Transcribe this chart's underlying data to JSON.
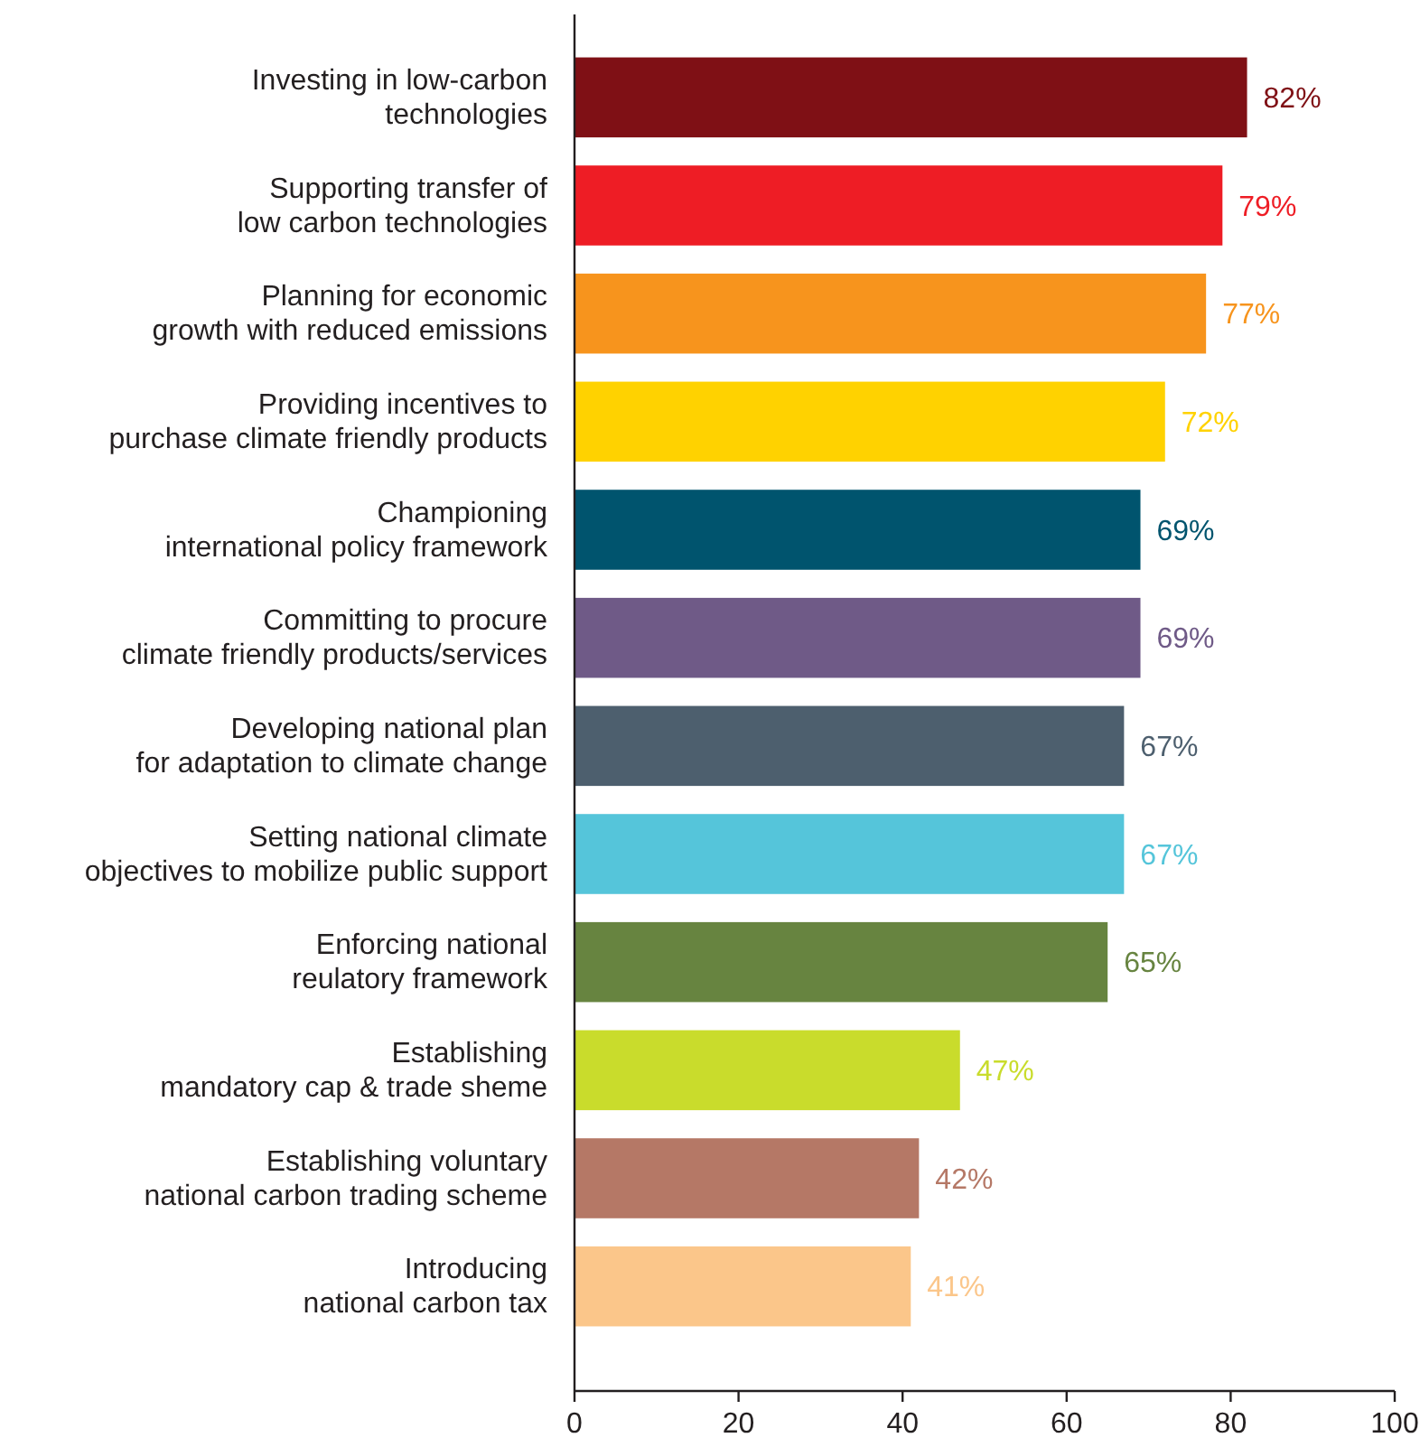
{
  "chart_data": {
    "type": "bar",
    "orientation": "horizontal",
    "categories": [
      "Investing in low-carbon\ntechnologies",
      "Supporting transfer of\nlow carbon technologies",
      "Planning for economic\ngrowth with reduced emissions",
      "Providing incentives to\npurchase climate friendly products",
      "Championing\ninternational policy framework",
      "Committing to procure\nclimate friendly products/services",
      "Developing national plan\nfor adaptation to climate change",
      "Setting national climate\nobjectives to mobilize public support",
      "Enforcing national\nreulatory framework",
      "Establishing\nmandatory cap & trade sheme",
      "Establishing voluntary\nnational carbon trading scheme",
      "Introducing\nnational carbon tax"
    ],
    "values": [
      82,
      79,
      77,
      72,
      69,
      69,
      67,
      67,
      65,
      47,
      42,
      41
    ],
    "value_labels": [
      "82%",
      "79%",
      "77%",
      "72%",
      "69%",
      "69%",
      "67%",
      "67%",
      "65%",
      "47%",
      "42%",
      "41%"
    ],
    "colors": [
      "#7f1015",
      "#ee1d25",
      "#f7941d",
      "#ffd200",
      "#00546e",
      "#6f5a87",
      "#4d5f6e",
      "#55c5da",
      "#678440",
      "#c9dc2c",
      "#b57866",
      "#fbc68a"
    ],
    "xlim": [
      0,
      100
    ],
    "xticks": [
      0,
      20,
      40,
      60,
      80,
      100
    ],
    "grid": false
  }
}
